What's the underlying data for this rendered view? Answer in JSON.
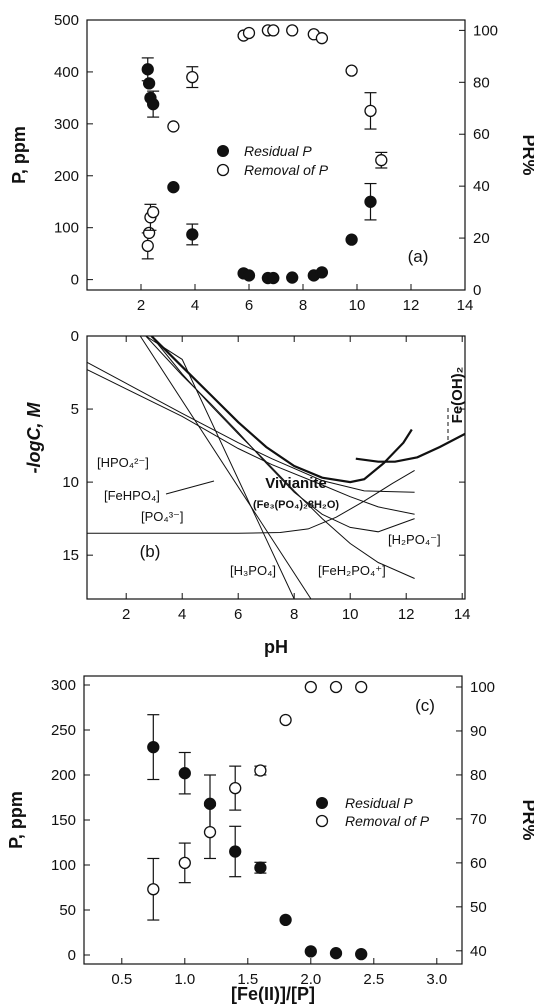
{
  "colors": {
    "axis": "#111111",
    "filled_marker": "#111111",
    "open_marker_fill": "#ffffff",
    "background": "#ffffff"
  },
  "chart_data": [
    {
      "type": "scatter",
      "panel_label": "(a)",
      "xlim": [
        0,
        14
      ],
      "ylim": [
        -20,
        500
      ],
      "y2lim": [
        0,
        104
      ],
      "x_ticks": [
        "2",
        "4",
        "6",
        "8",
        "10",
        "12",
        "14"
      ],
      "y_ticks": [
        "0",
        "100",
        "200",
        "300",
        "400",
        "500"
      ],
      "y2_ticks": [
        "0",
        "20",
        "40",
        "60",
        "80",
        "100"
      ],
      "ylabel": "P, ppm",
      "y2label": "PR%",
      "xlabel": "",
      "legend_position": "center",
      "series": [
        {
          "name": "Residual P",
          "axis": "left",
          "marker": "filled-circle",
          "points": [
            {
              "x": 2.25,
              "y": 405,
              "err": 22
            },
            {
              "x": 2.3,
              "y": 378,
              "err": 0
            },
            {
              "x": 2.35,
              "y": 350,
              "err": 0
            },
            {
              "x": 2.45,
              "y": 338,
              "err": 25
            },
            {
              "x": 3.2,
              "y": 178,
              "err": 0
            },
            {
              "x": 3.9,
              "y": 87,
              "err": 20
            },
            {
              "x": 5.8,
              "y": 12,
              "err": 0
            },
            {
              "x": 6.0,
              "y": 8,
              "err": 0
            },
            {
              "x": 6.7,
              "y": 3,
              "err": 0
            },
            {
              "x": 6.9,
              "y": 3,
              "err": 0
            },
            {
              "x": 7.6,
              "y": 4,
              "err": 0
            },
            {
              "x": 8.4,
              "y": 8,
              "err": 0
            },
            {
              "x": 8.7,
              "y": 14,
              "err": 0
            },
            {
              "x": 9.8,
              "y": 77,
              "err": 0
            },
            {
              "x": 10.5,
              "y": 150,
              "err": 35
            }
          ]
        },
        {
          "name": "Removal of P",
          "axis": "right",
          "marker": "open-circle",
          "points": [
            {
              "x": 2.25,
              "y": 17,
              "err": 5
            },
            {
              "x": 2.3,
              "y": 22,
              "err": 0
            },
            {
              "x": 2.35,
              "y": 28,
              "err": 5
            },
            {
              "x": 2.45,
              "y": 30,
              "err": 0
            },
            {
              "x": 3.2,
              "y": 63,
              "err": 0
            },
            {
              "x": 3.9,
              "y": 82,
              "err": 4
            },
            {
              "x": 5.8,
              "y": 98,
              "err": 0
            },
            {
              "x": 6.0,
              "y": 99,
              "err": 0
            },
            {
              "x": 6.7,
              "y": 100,
              "err": 0
            },
            {
              "x": 6.9,
              "y": 100,
              "err": 0
            },
            {
              "x": 7.6,
              "y": 100,
              "err": 0
            },
            {
              "x": 8.4,
              "y": 98.5,
              "err": 0
            },
            {
              "x": 8.7,
              "y": 97,
              "err": 0
            },
            {
              "x": 9.8,
              "y": 84.5,
              "err": 0
            },
            {
              "x": 10.5,
              "y": 69,
              "err": 7
            },
            {
              "x": 10.9,
              "y": 50,
              "err": 3
            }
          ]
        }
      ]
    },
    {
      "type": "line",
      "panel_label": "(b)",
      "xlim": [
        0.6,
        14.1
      ],
      "ylim": [
        0,
        18
      ],
      "y_inverted": true,
      "x_ticks": [
        "2",
        "4",
        "6",
        "8",
        "10",
        "12",
        "14"
      ],
      "y_ticks": [
        "0",
        "5",
        "10",
        "15"
      ],
      "xlabel": "pH",
      "ylabel": "-logC, M",
      "region_labels": {
        "vivianite": "Vivianite",
        "vivianite_formula": "(Fe₃(PO₄)₂8H₂O)",
        "fe_oh2": "Fe(OH)₂"
      },
      "series": [
        {
          "name": "[HPO₄²⁻]",
          "points": [
            [
              0.6,
              1.8
            ],
            [
              4,
              5.3
            ],
            [
              6,
              7.3
            ],
            [
              7.2,
              8.4
            ],
            [
              9,
              9.9
            ],
            [
              10.5,
              10.6
            ],
            [
              12.3,
              10.7
            ]
          ]
        },
        {
          "name": "[FeHPO₄]",
          "points": [
            [
              0.6,
              2.3
            ],
            [
              4,
              5.5
            ],
            [
              6,
              7.7
            ],
            [
              7.2,
              8.8
            ],
            [
              9,
              10.2
            ],
            [
              10,
              11.0
            ],
            [
              11,
              11.7
            ],
            [
              12.3,
              12.2
            ]
          ]
        },
        {
          "name": "[PO₄³⁻]",
          "points": [
            [
              0.6,
              13.5
            ],
            [
              6,
              13.5
            ],
            [
              7.5,
              13.45
            ],
            [
              8.5,
              13.2
            ],
            [
              9.5,
              12.4
            ],
            [
              10.5,
              11.3
            ],
            [
              11.5,
              10.1
            ],
            [
              12.3,
              9.2
            ]
          ]
        },
        {
          "name": "[H₂PO₄⁻]",
          "points": [
            [
              2.7,
              0
            ],
            [
              4,
              2.7
            ],
            [
              5,
              4.6
            ],
            [
              6,
              6.6
            ],
            [
              7,
              8.7
            ],
            [
              8,
              10.7
            ],
            [
              9,
              12.2
            ],
            [
              10,
              13.1
            ],
            [
              11,
              13.4
            ],
            [
              12.3,
              12.5
            ]
          ]
        },
        {
          "name": "[FeH₂PO₄⁺]",
          "points": [
            [
              2.9,
              0
            ],
            [
              4,
              2.6
            ],
            [
              5,
              4.7
            ],
            [
              6,
              6.7
            ],
            [
              7,
              8.6
            ],
            [
              8,
              10.6
            ],
            [
              9,
              12.5
            ],
            [
              10,
              14.2
            ],
            [
              11,
              15.5
            ],
            [
              12.3,
              16.6
            ]
          ]
        },
        {
          "name": "[H₃PO₄]",
          "points": [
            [
              2.5,
              0
            ],
            [
              8.6,
              18
            ]
          ]
        },
        {
          "name": "[HPO₄]",
          "points": [
            [
              2.7,
              0
            ],
            [
              4,
              1.6
            ],
            [
              8,
              18
            ]
          ]
        },
        {
          "name": "Vivianite",
          "points": [
            [
              2.9,
              0
            ],
            [
              4,
              2.1
            ],
            [
              5,
              4.0
            ],
            [
              6,
              5.9
            ],
            [
              7,
              7.6
            ],
            [
              8,
              8.9
            ],
            [
              9,
              9.7
            ],
            [
              10,
              10.0
            ],
            [
              10.5,
              9.8
            ],
            [
              11.2,
              8.7
            ],
            [
              11.9,
              7.3
            ],
            [
              12.2,
              6.4
            ]
          ]
        },
        {
          "name": "Fe(OH)₂",
          "points": [
            [
              10.2,
              8.4
            ],
            [
              11,
              8.6
            ],
            [
              11.6,
              8.6
            ],
            [
              12.4,
              8.3
            ],
            [
              13.2,
              7.6
            ],
            [
              14.1,
              6.7
            ]
          ]
        },
        {
          "name": "Fe(OH)₂ boundary",
          "points": [
            [
              11.5,
              3.6
            ],
            [
              11.5,
              8.6
            ]
          ]
        }
      ]
    },
    {
      "type": "scatter",
      "panel_label": "(c)",
      "xlim": [
        0.2,
        3.2
      ],
      "ylim": [
        -10,
        310
      ],
      "y2lim": [
        37,
        102.5
      ],
      "x_ticks": [
        "0.5",
        "1.0",
        "1.5",
        "2.0",
        "2.5",
        "3.0"
      ],
      "y_ticks": [
        "0",
        "50",
        "100",
        "150",
        "200",
        "250",
        "300"
      ],
      "y2_ticks": [
        "40",
        "50",
        "60",
        "70",
        "80",
        "90",
        "100"
      ],
      "ylabel": "P, ppm",
      "y2label": "PR%",
      "xlabel": "[Fe(II)]/[P]",
      "legend_position": "center-right",
      "series": [
        {
          "name": "Residual P",
          "axis": "left",
          "marker": "filled-circle",
          "points": [
            {
              "x": 0.75,
              "y": 231,
              "err": 36
            },
            {
              "x": 1.0,
              "y": 202,
              "err": 23
            },
            {
              "x": 1.2,
              "y": 168,
              "err": 32
            },
            {
              "x": 1.4,
              "y": 115,
              "err": 28
            },
            {
              "x": 1.6,
              "y": 97,
              "err": 6
            },
            {
              "x": 1.8,
              "y": 39,
              "err": 0
            },
            {
              "x": 2.0,
              "y": 4,
              "err": 0
            },
            {
              "x": 2.2,
              "y": 2,
              "err": 0
            },
            {
              "x": 2.4,
              "y": 1,
              "err": 0
            }
          ]
        },
        {
          "name": "Removal of P",
          "axis": "right",
          "marker": "open-circle",
          "points": [
            {
              "x": 0.75,
              "y": 54,
              "err": 7
            },
            {
              "x": 1.0,
              "y": 60,
              "err": 4.5
            },
            {
              "x": 1.2,
              "y": 67,
              "err": 6
            },
            {
              "x": 1.4,
              "y": 77,
              "err": 5
            },
            {
              "x": 1.6,
              "y": 81,
              "err": 1
            },
            {
              "x": 1.8,
              "y": 92.5,
              "err": 0
            },
            {
              "x": 2.0,
              "y": 100,
              "err": 0
            },
            {
              "x": 2.2,
              "y": 100,
              "err": 0
            },
            {
              "x": 2.4,
              "y": 100,
              "err": 0
            }
          ]
        }
      ]
    }
  ]
}
